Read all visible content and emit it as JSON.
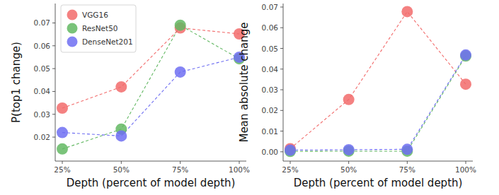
{
  "chart_data": [
    {
      "type": "line",
      "x_label": "Depth (percent of model depth)",
      "y_label": "P(top1 change)",
      "categories": [
        "25%",
        "50%",
        "75%",
        "100%"
      ],
      "series": [
        {
          "name": "VGG16",
          "color": "#f26b6b",
          "values": [
            0.0327,
            0.042,
            0.0678,
            0.0652
          ]
        },
        {
          "name": "ResNet50",
          "color": "#63b863",
          "values": [
            0.0148,
            0.0235,
            0.069,
            0.0543
          ]
        },
        {
          "name": "DenseNet201",
          "color": "#6e6ef2",
          "values": [
            0.022,
            0.0205,
            0.0485,
            0.055
          ]
        }
      ],
      "ylim": [
        0.0095,
        0.0785
      ],
      "yticks": [
        0.02,
        0.03,
        0.04,
        0.05,
        0.06,
        0.07
      ],
      "marker": "circle",
      "line_style": "dashed",
      "legend": "upper left"
    },
    {
      "type": "line",
      "x_label": "Depth (percent of model depth)",
      "y_label": "Mean absolute change",
      "categories": [
        "25%",
        "50%",
        "75%",
        "100%"
      ],
      "series": [
        {
          "name": "VGG16",
          "color": "#f26b6b",
          "values": [
            0.0015,
            0.0253,
            0.0678,
            0.0327
          ]
        },
        {
          "name": "ResNet50",
          "color": "#63b863",
          "values": [
            0.0002,
            0.0003,
            0.0003,
            0.0463
          ]
        },
        {
          "name": "DenseNet201",
          "color": "#6e6ef2",
          "values": [
            0.0008,
            0.001,
            0.0012,
            0.0468
          ]
        }
      ],
      "ylim": [
        -0.0045,
        0.0717
      ],
      "yticks": [
        {
          "value": 0,
          "label": "0.00"
        },
        0.01,
        0.02,
        0.03,
        0.04,
        0.05,
        0.06,
        0.07
      ],
      "marker": "circle",
      "line_style": "dashed"
    }
  ]
}
